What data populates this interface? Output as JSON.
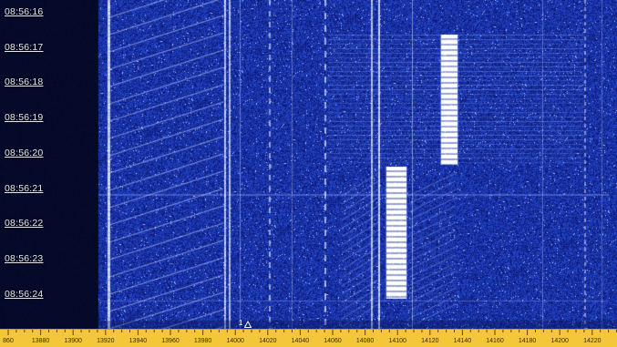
{
  "waterfall": {
    "background_color": "#0a1650",
    "signal_color": "#ffffff",
    "noise_color": "#1a3cc0",
    "times": [
      "08:56:16",
      "08:56:17",
      "08:56:18",
      "08:56:19",
      "08:56:20",
      "08:56:21",
      "08:56:22",
      "08:56:23",
      "08:56:24"
    ],
    "marker": {
      "label": "1",
      "frequency": 14000,
      "icon": "triangle-marker-icon"
    }
  },
  "frequency_axis": {
    "background_color": "#f4c63a",
    "ticks": [
      "860",
      "13880",
      "13900",
      "13920",
      "13940",
      "13960",
      "13980",
      "14000",
      "14020",
      "14040",
      "14060",
      "14080",
      "14100",
      "14120",
      "14140",
      "14160",
      "14180",
      "14200",
      "14220"
    ]
  }
}
